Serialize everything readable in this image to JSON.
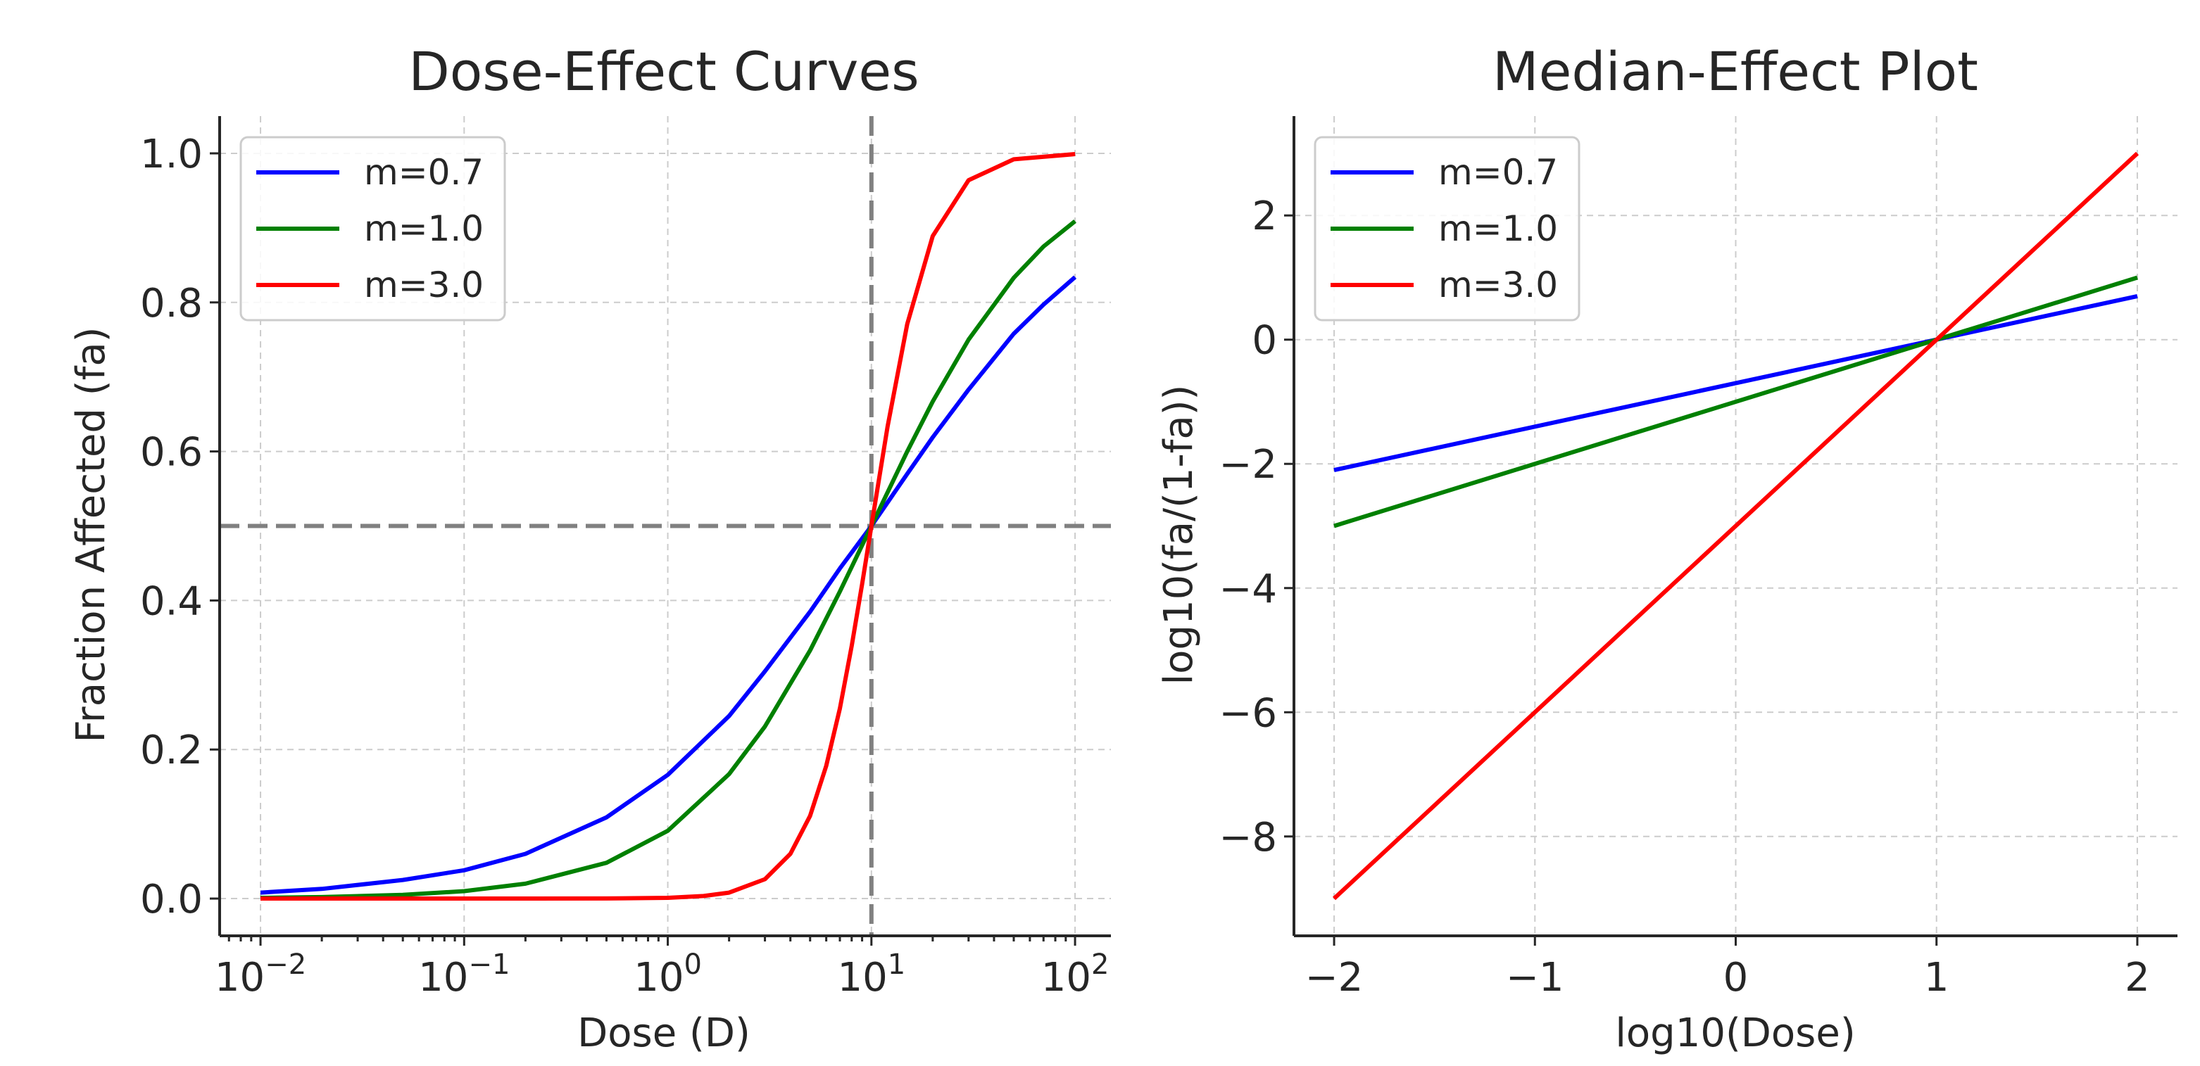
{
  "chart_data": [
    {
      "type": "line",
      "title": "Dose-Effect Curves",
      "xlabel": "Dose (D)",
      "ylabel": "Fraction Affected (fa)",
      "xscale": "log",
      "xlim": [
        0.0063,
        150
      ],
      "ylim": [
        -0.05,
        1.05
      ],
      "xticks": [
        0.01,
        0.1,
        1,
        10,
        100
      ],
      "xtick_labels": [
        {
          "base": "10",
          "exp": "−2"
        },
        {
          "base": "10",
          "exp": "−1"
        },
        {
          "base": "10",
          "exp": "0"
        },
        {
          "base": "10",
          "exp": "1"
        },
        {
          "base": "10",
          "exp": "2"
        }
      ],
      "yticks": [
        0.0,
        0.2,
        0.4,
        0.6,
        0.8,
        1.0
      ],
      "ytick_labels": [
        "0.0",
        "0.2",
        "0.4",
        "0.6",
        "0.8",
        "1.0"
      ],
      "grid": true,
      "legend_position": "top-left",
      "reference_lines": {
        "vertical_x": 10,
        "horizontal_y": 0.5,
        "color": "#808080",
        "style": "dashed"
      },
      "series": [
        {
          "name": "m=0.7",
          "color": "#0000ff",
          "x": [
            0.01,
            0.02,
            0.05,
            0.1,
            0.2,
            0.5,
            1,
            2,
            3,
            5,
            7,
            10,
            15,
            20,
            30,
            50,
            70,
            100
          ],
          "y": [
            0.008,
            0.013,
            0.025,
            0.038,
            0.06,
            0.109,
            0.166,
            0.245,
            0.305,
            0.385,
            0.443,
            0.5,
            0.57,
            0.619,
            0.683,
            0.758,
            0.797,
            0.834
          ]
        },
        {
          "name": "m=1.0",
          "color": "#008000",
          "x": [
            0.01,
            0.02,
            0.05,
            0.1,
            0.2,
            0.5,
            1,
            2,
            3,
            5,
            7,
            10,
            15,
            20,
            30,
            50,
            70,
            100
          ],
          "y": [
            0.001,
            0.002,
            0.005,
            0.01,
            0.02,
            0.048,
            0.091,
            0.167,
            0.231,
            0.333,
            0.412,
            0.5,
            0.6,
            0.667,
            0.75,
            0.833,
            0.875,
            0.909
          ]
        },
        {
          "name": "m=3.0",
          "color": "#ff0000",
          "x": [
            0.01,
            0.1,
            0.5,
            1,
            1.5,
            2,
            3,
            4,
            5,
            6,
            7,
            8,
            9,
            10,
            12,
            15,
            20,
            30,
            50,
            100
          ],
          "y": [
            0.0,
            0.0,
            0.0001,
            0.001,
            0.0034,
            0.008,
            0.026,
            0.06,
            0.111,
            0.178,
            0.255,
            0.339,
            0.422,
            0.5,
            0.633,
            0.771,
            0.889,
            0.964,
            0.992,
            0.999
          ]
        }
      ]
    },
    {
      "type": "line",
      "title": "Median-Effect Plot",
      "xlabel": "log10(Dose)",
      "ylabel": "log10(fa/(1-fa))",
      "xlim": [
        -2.2,
        2.2
      ],
      "ylim": [
        -9.6,
        3.6
      ],
      "xticks": [
        -2,
        -1,
        0,
        1,
        2
      ],
      "xtick_labels": [
        "−2",
        "−1",
        "0",
        "1",
        "2"
      ],
      "yticks": [
        -8,
        -6,
        -4,
        -2,
        0,
        2
      ],
      "ytick_labels": [
        "−8",
        "−6",
        "−4",
        "−2",
        "0",
        "2"
      ],
      "grid": true,
      "legend_position": "top-left",
      "series": [
        {
          "name": "m=0.7",
          "color": "#0000ff",
          "x": [
            -2,
            2
          ],
          "y": [
            -2.1,
            0.7
          ]
        },
        {
          "name": "m=1.0",
          "color": "#008000",
          "x": [
            -2,
            2
          ],
          "y": [
            -3.0,
            1.0
          ]
        },
        {
          "name": "m=3.0",
          "color": "#ff0000",
          "x": [
            -2,
            2
          ],
          "y": [
            -9.0,
            3.0
          ]
        }
      ]
    }
  ]
}
